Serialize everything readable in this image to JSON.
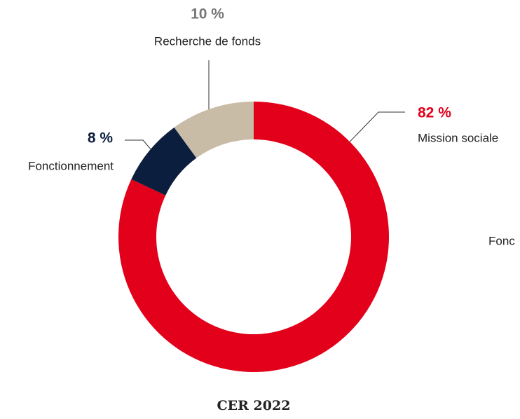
{
  "chart_data": {
    "type": "donut",
    "title": "CER 2022",
    "categories": [
      "Mission sociale",
      "Fonctionnement",
      "Recherche de fonds"
    ],
    "values": [
      82,
      8,
      10
    ],
    "value_labels": [
      "82 %",
      "8 %",
      "10 %"
    ],
    "colors": [
      "#e2001a",
      "#0c1e3d",
      "#c8bca7"
    ],
    "label_colors": [
      "#e2001a",
      "#0c1e3d",
      "#777777"
    ],
    "annotations": [
      "Fonc"
    ]
  }
}
